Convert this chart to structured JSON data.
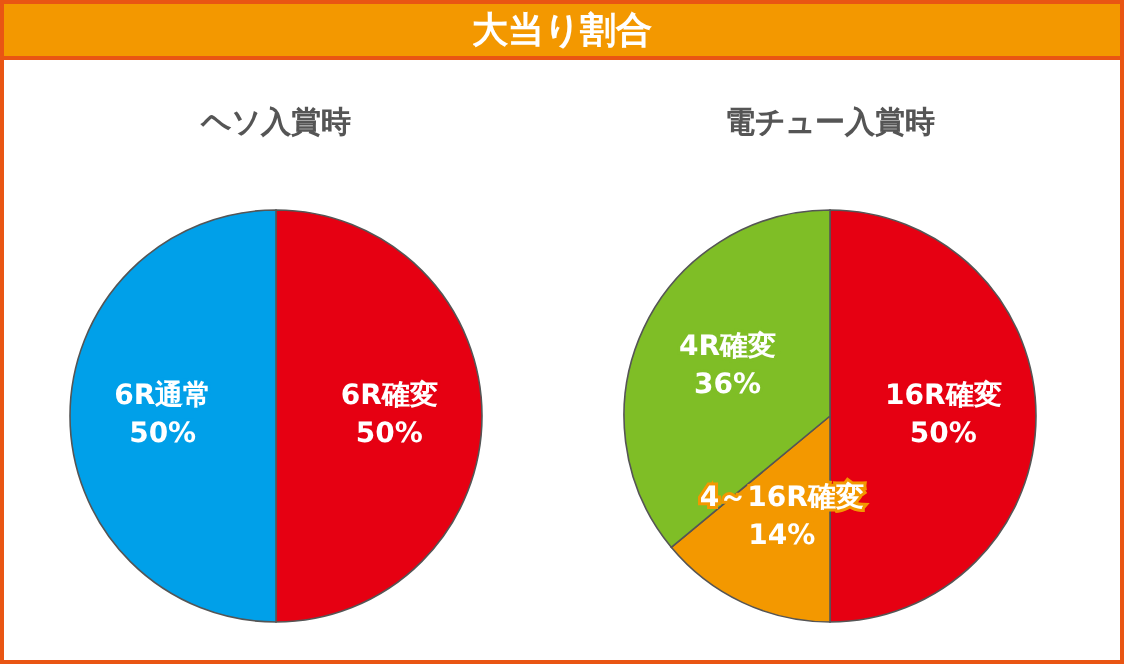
{
  "chart_data": [
    {
      "type": "other",
      "title": "大当り割合"
    },
    {
      "type": "pie",
      "title": "ヘソ入賞時",
      "categories": [
        "6R確変",
        "6R通常"
      ],
      "values": [
        50,
        50
      ],
      "colors": [
        "#e60012",
        "#00a0e9"
      ],
      "value_labels": [
        "50%",
        "50%"
      ]
    },
    {
      "type": "pie",
      "title": "電チュー入賞時",
      "categories": [
        "16R確変",
        "4～16R確変",
        "4R確変"
      ],
      "values": [
        50,
        14,
        36
      ],
      "colors": [
        "#e60012",
        "#f39800",
        "#7fbe26"
      ],
      "value_labels": [
        "50%",
        "14%",
        "36%"
      ]
    }
  ]
}
